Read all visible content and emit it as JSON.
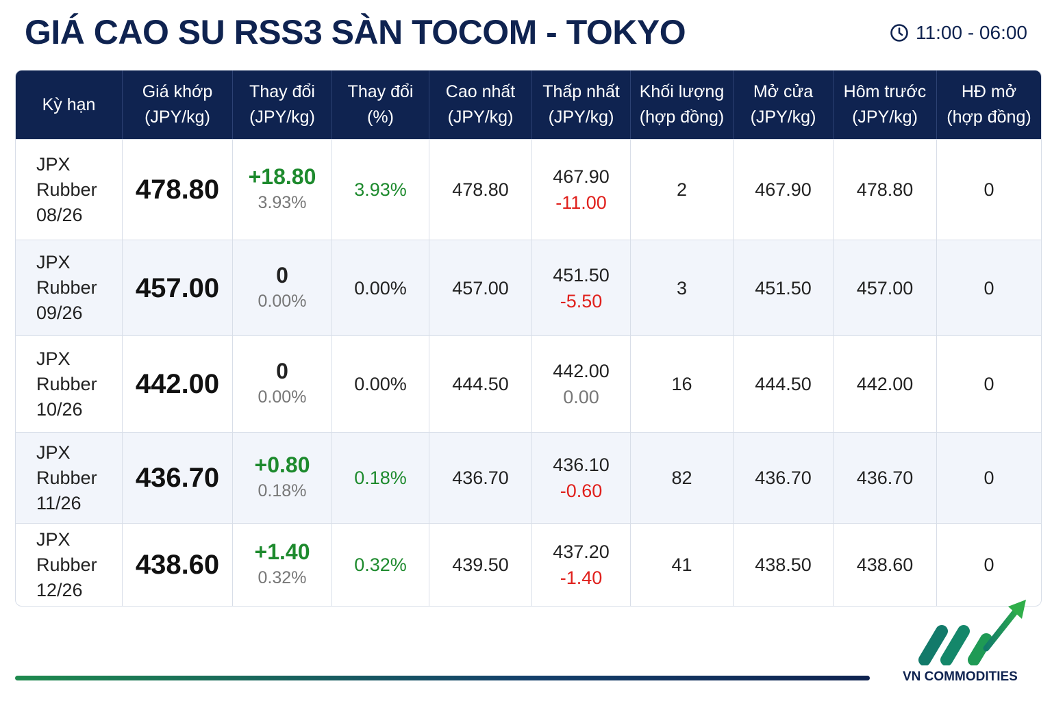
{
  "header": {
    "title": "GIÁ CAO SU RSS3 SÀN TOCOM - TOKYO",
    "time": "11:00 - 06:00"
  },
  "table": {
    "columns": [
      [
        "Kỳ hạn"
      ],
      [
        "Giá khớp",
        "(JPY/kg)"
      ],
      [
        "Thay đổi",
        "(JPY/kg)"
      ],
      [
        "Thay đổi",
        "(%)"
      ],
      [
        "Cao nhất",
        "(JPY/kg)"
      ],
      [
        "Thấp nhất",
        "(JPY/kg)"
      ],
      [
        "Khối lượng",
        "(hợp đồng)"
      ],
      [
        "Mở cửa",
        "(JPY/kg)"
      ],
      [
        "Hôm trước",
        "(JPY/kg)"
      ],
      [
        "HĐ mở",
        "(hợp đồng)"
      ]
    ],
    "rows": [
      [
        "JPX Rubber 08/26",
        "478.80",
        [
          "+18.80",
          "3.93%"
        ],
        "3.93%",
        "478.80",
        [
          "467.90",
          "-11.00"
        ],
        "2",
        "467.90",
        "478.80",
        "0"
      ],
      [
        "JPX Rubber 09/26",
        "457.00",
        [
          "0",
          "0.00%"
        ],
        "0.00%",
        "457.00",
        [
          "451.50",
          "-5.50"
        ],
        "3",
        "451.50",
        "457.00",
        "0"
      ],
      [
        "JPX Rubber 10/26",
        "442.00",
        [
          "0",
          "0.00%"
        ],
        "0.00%",
        "444.50",
        [
          "442.00",
          "0.00"
        ],
        "16",
        "444.50",
        "442.00",
        "0"
      ],
      [
        "JPX Rubber 11/26",
        "436.70",
        [
          "+0.80",
          "0.18%"
        ],
        "0.18%",
        "436.70",
        [
          "436.10",
          "-0.60"
        ],
        "82",
        "436.70",
        "436.70",
        "0"
      ],
      [
        "JPX Rubber 12/26",
        "438.60",
        [
          "+1.40",
          "0.32%"
        ],
        "0.32%",
        "439.50",
        [
          "437.20",
          "-1.40"
        ],
        "41",
        "438.50",
        "438.60",
        "0"
      ]
    ]
  },
  "footer": {
    "brand": "VN COMMODITIES"
  }
}
